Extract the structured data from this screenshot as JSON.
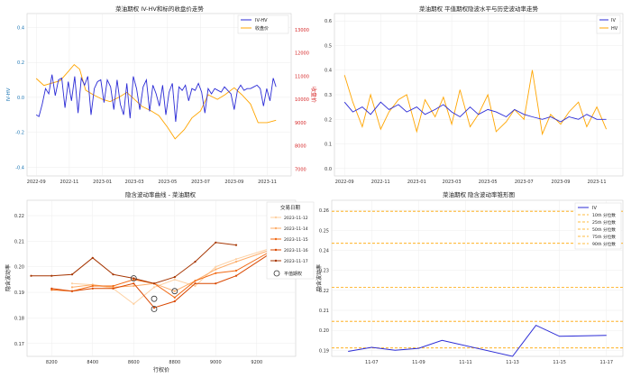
{
  "chart_data": [
    {
      "type": "line",
      "title": "菜油期权 IV-HV和标的收盘价走势",
      "xlabel": "",
      "ylabel": "IV-HV",
      "ylabel_right": "收盘价",
      "ylim": [
        -0.45,
        0.48
      ],
      "ylim_right": [
        6700,
        13700
      ],
      "xlim": [
        "2022-08-15",
        "2023-12-15"
      ],
      "yticks": [
        "-0.4",
        "-0.2",
        "0.0",
        "0.2",
        "0.4"
      ],
      "yticks_right": [
        "7000",
        "8000",
        "9000",
        "10000",
        "11000",
        "12000",
        "13000"
      ],
      "xticks": [
        "2022-09",
        "2022-11",
        "2023-01",
        "2023-03",
        "2023-05",
        "2023-07",
        "2023-09",
        "2023-11"
      ],
      "legend_position": "top-right",
      "colors": {
        "iv_hv": "#2b2bd6",
        "close": "#ffa500",
        "left_axis": "#1f77b4",
        "right_axis": "#d62728"
      },
      "series": [
        {
          "name": "IV-HV",
          "axis": "left",
          "x": [
            "2022-09-01",
            "2022-09-06",
            "2022-09-12",
            "2022-09-18",
            "2022-09-24",
            "2022-09-30",
            "2022-10-06",
            "2022-10-12",
            "2022-10-18",
            "2022-10-24",
            "2022-10-30",
            "2022-11-05",
            "2022-11-11",
            "2022-11-17",
            "2022-11-23",
            "2022-11-29",
            "2022-12-05",
            "2022-12-11",
            "2022-12-17",
            "2022-12-23",
            "2022-12-29",
            "2023-01-04",
            "2023-01-10",
            "2023-01-16",
            "2023-01-22",
            "2023-01-28",
            "2023-02-03",
            "2023-02-09",
            "2023-02-15",
            "2023-02-21",
            "2023-02-27",
            "2023-03-05",
            "2023-03-11",
            "2023-03-17",
            "2023-03-23",
            "2023-03-29",
            "2023-04-04",
            "2023-04-10",
            "2023-04-16",
            "2023-04-22",
            "2023-04-28",
            "2023-05-04",
            "2023-05-10",
            "2023-05-16",
            "2023-05-22",
            "2023-05-28",
            "2023-06-03",
            "2023-06-09",
            "2023-06-15",
            "2023-06-21",
            "2023-06-27",
            "2023-07-03",
            "2023-07-09",
            "2023-07-15",
            "2023-07-21",
            "2023-07-27",
            "2023-08-02",
            "2023-08-08",
            "2023-08-14",
            "2023-08-20",
            "2023-08-26",
            "2023-09-01",
            "2023-09-07",
            "2023-09-13",
            "2023-09-19",
            "2023-09-25",
            "2023-10-01",
            "2023-10-07",
            "2023-10-13",
            "2023-10-19",
            "2023-10-25",
            "2023-10-31",
            "2023-11-06",
            "2023-11-12",
            "2023-11-17"
          ],
          "values": [
            -0.1,
            -0.11,
            -0.04,
            0.05,
            0.02,
            0.13,
            0.01,
            0.1,
            0.11,
            -0.06,
            0.09,
            -0.02,
            0.12,
            -0.09,
            0.11,
            0.07,
            0.12,
            -0.1,
            0.05,
            0.09,
            0.1,
            -0.03,
            0.1,
            0.06,
            -0.07,
            0.1,
            -0.04,
            -0.1,
            0.08,
            -0.12,
            0.12,
            0.05,
            -0.07,
            0.06,
            0.1,
            -0.08,
            0.07,
            0.02,
            -0.05,
            0.07,
            -0.1,
            0.03,
            0.08,
            -0.14,
            0.06,
            0.04,
            0.07,
            -0.02,
            0.05,
            0.04,
            0.08,
            0.03,
            -0.09,
            0.05,
            0.02,
            0.05,
            0.04,
            0.03,
            0.06,
            0.04,
            0.02,
            -0.07,
            0.04,
            0.07,
            0.04,
            0.05,
            0.05,
            0.06,
            0.07,
            0.05,
            -0.05,
            0.05,
            -0.02,
            0.11,
            0.06
          ]
        },
        {
          "name": "收盘价",
          "axis": "right",
          "x": [
            "2022-09-01",
            "2022-09-15",
            "2022-09-30",
            "2022-10-15",
            "2022-10-30",
            "2022-11-10",
            "2022-11-20",
            "2022-12-01",
            "2022-12-15",
            "2023-01-01",
            "2023-01-15",
            "2023-02-01",
            "2023-02-15",
            "2023-03-01",
            "2023-03-15",
            "2023-04-01",
            "2023-04-15",
            "2023-05-01",
            "2023-05-15",
            "2023-06-01",
            "2023-06-15",
            "2023-07-01",
            "2023-07-15",
            "2023-08-01",
            "2023-08-15",
            "2023-09-01",
            "2023-09-15",
            "2023-10-01",
            "2023-10-15",
            "2023-11-01",
            "2023-11-17"
          ],
          "values": [
            10900,
            10600,
            10700,
            10800,
            11200,
            11500,
            11300,
            10400,
            10200,
            10000,
            9900,
            10100,
            10300,
            10000,
            9700,
            9500,
            9300,
            8800,
            8300,
            8700,
            9200,
            9500,
            10200,
            10000,
            10200,
            10500,
            10200,
            9800,
            9000,
            9000,
            9100
          ]
        }
      ]
    },
    {
      "type": "line",
      "title": "菜油期权 平值期权隐波水平与历史波动率走势",
      "xlabel": "",
      "ylabel": "",
      "ylim": [
        -0.03,
        0.63
      ],
      "xlim": [
        "2022-08-15",
        "2023-12-15"
      ],
      "yticks": [
        "0.0",
        "0.1",
        "0.2",
        "0.3",
        "0.4",
        "0.5",
        "0.6"
      ],
      "xticks": [
        "2022-09",
        "2022-11",
        "2023-01",
        "2023-03",
        "2023-05",
        "2023-07",
        "2023-09",
        "2023-11"
      ],
      "legend_position": "top-right",
      "colors": {
        "iv": "#2b2bd6",
        "hv": "#ffa500"
      },
      "series": [
        {
          "name": "IV",
          "x": [
            "2022-09-01",
            "2022-09-15",
            "2022-10-01",
            "2022-10-15",
            "2022-11-01",
            "2022-11-15",
            "2022-12-01",
            "2022-12-15",
            "2023-01-01",
            "2023-01-15",
            "2023-02-01",
            "2023-02-15",
            "2023-03-01",
            "2023-03-15",
            "2023-04-01",
            "2023-04-15",
            "2023-05-01",
            "2023-05-15",
            "2023-06-01",
            "2023-06-15",
            "2023-07-01",
            "2023-07-15",
            "2023-08-01",
            "2023-08-15",
            "2023-09-01",
            "2023-09-15",
            "2023-10-01",
            "2023-10-15",
            "2023-11-01",
            "2023-11-17"
          ],
          "values": [
            0.27,
            0.23,
            0.25,
            0.22,
            0.27,
            0.24,
            0.26,
            0.23,
            0.25,
            0.22,
            0.24,
            0.26,
            0.23,
            0.21,
            0.25,
            0.22,
            0.24,
            0.23,
            0.21,
            0.24,
            0.22,
            0.21,
            0.2,
            0.21,
            0.19,
            0.21,
            0.2,
            0.22,
            0.2,
            0.2
          ]
        },
        {
          "name": "HV",
          "x": [
            "2022-09-01",
            "2022-09-15",
            "2022-10-01",
            "2022-10-15",
            "2022-11-01",
            "2022-11-15",
            "2022-12-01",
            "2022-12-15",
            "2023-01-01",
            "2023-01-15",
            "2023-02-01",
            "2023-02-15",
            "2023-03-01",
            "2023-03-15",
            "2023-04-01",
            "2023-04-15",
            "2023-05-01",
            "2023-05-15",
            "2023-06-01",
            "2023-06-15",
            "2023-07-01",
            "2023-07-15",
            "2023-08-01",
            "2023-08-15",
            "2023-09-01",
            "2023-09-15",
            "2023-10-01",
            "2023-10-15",
            "2023-11-01",
            "2023-11-17"
          ],
          "values": [
            0.38,
            0.27,
            0.17,
            0.3,
            0.16,
            0.23,
            0.28,
            0.3,
            0.15,
            0.28,
            0.21,
            0.29,
            0.18,
            0.32,
            0.17,
            0.22,
            0.3,
            0.15,
            0.19,
            0.24,
            0.2,
            0.4,
            0.14,
            0.22,
            0.18,
            0.23,
            0.27,
            0.17,
            0.25,
            0.16
          ]
        }
      ]
    },
    {
      "type": "line",
      "title": "隐含波动率曲线 - 菜油期权",
      "xlabel": "行权价",
      "ylabel": "隐含波动率",
      "ylim": [
        0.165,
        0.226
      ],
      "xlim": [
        8080,
        9390
      ],
      "xticks": [
        "8200",
        "8400",
        "8600",
        "8800",
        "9000",
        "9200"
      ],
      "yticks": [
        "0.17",
        "0.18",
        "0.19",
        "0.20",
        "0.21",
        "0.22"
      ],
      "legend_title": "交易日期",
      "legend_position": "upper-right",
      "atm_label": "平值期权",
      "series": [
        {
          "name": "2023-11-12",
          "color": "#fdd0a2",
          "x": [
            8300,
            8400,
            8500,
            8600,
            8700,
            8800,
            8900,
            9000,
            9100,
            9300
          ],
          "values": [
            0.1935,
            0.193,
            0.1915,
            0.1855,
            0.192,
            0.195,
            0.1925,
            0.2,
            0.203,
            0.208
          ]
        },
        {
          "name": "2023-11-14",
          "color": "#fdae6b",
          "x": [
            8300,
            8400,
            8500,
            8600,
            8700,
            8800,
            8900,
            9000,
            9100,
            9300
          ],
          "values": [
            0.192,
            0.193,
            0.192,
            0.1925,
            0.1935,
            0.1905,
            0.1945,
            0.199,
            0.202,
            0.2075
          ]
        },
        {
          "name": "2023-11-15",
          "color": "#f16913",
          "x": [
            8200,
            8300,
            8400,
            8500,
            8600,
            8700,
            8800,
            8900,
            9000,
            9100,
            9300
          ],
          "values": [
            0.191,
            0.1905,
            0.1925,
            0.1925,
            0.195,
            0.1935,
            0.188,
            0.1945,
            0.1975,
            0.1985,
            0.2075
          ]
        },
        {
          "name": "2023-11-16",
          "color": "#d94801",
          "x": [
            8200,
            8300,
            8400,
            8500,
            8600,
            8700,
            8800,
            8900,
            9000,
            9100,
            9300
          ],
          "values": [
            0.1915,
            0.1905,
            0.1915,
            0.1915,
            0.1935,
            0.184,
            0.1865,
            0.1935,
            0.1935,
            0.1965,
            0.207
          ]
        },
        {
          "name": "2023-11-17",
          "color": "#a63603",
          "x": [
            8100,
            8200,
            8300,
            8400,
            8500,
            8600,
            8700,
            8800,
            8900,
            9000,
            9100
          ],
          "values": [
            0.1965,
            0.1965,
            0.197,
            0.2035,
            0.197,
            0.1955,
            0.1935,
            0.196,
            0.202,
            0.2095,
            0.2085
          ]
        }
      ],
      "atm_points": [
        {
          "x": 8600,
          "value": 0.1955
        },
        {
          "x": 8700,
          "value": 0.1875
        },
        {
          "x": 8700,
          "value": 0.1835
        },
        {
          "x": 8800,
          "value": 0.1905
        }
      ]
    },
    {
      "type": "line",
      "title": "菜油期权 隐含波动率锥形图",
      "xlabel": "",
      "ylabel": "隐含波动率",
      "ylim": [
        0.187,
        0.265
      ],
      "xlim": [
        "2023-11-06",
        "2023-11-17"
      ],
      "xticks": [
        "11-07",
        "11-09",
        "11-11",
        "11-13",
        "11-15",
        "11-17"
      ],
      "yticks": [
        "0.19",
        "0.20",
        "0.21",
        "0.22",
        "0.23",
        "0.24",
        "0.25",
        "0.26"
      ],
      "legend_position": "top-right",
      "colors": {
        "iv": "#2b2bd6",
        "quantile": "#ffa500"
      },
      "series": [
        {
          "name": "IV",
          "x": [
            "2023-11-06",
            "2023-11-07",
            "2023-11-08",
            "2023-11-09",
            "2023-11-10",
            "2023-11-13",
            "2023-11-14",
            "2023-11-15",
            "2023-11-17"
          ],
          "values": [
            0.1895,
            0.1915,
            0.19,
            0.191,
            0.195,
            0.187,
            0.2025,
            0.197,
            0.1975
          ]
        }
      ],
      "quantiles": [
        {
          "name": "10th 分位数",
          "value": 0.1912
        },
        {
          "name": "25th 分位数",
          "value": 0.2045
        },
        {
          "name": "50th 分位数",
          "value": 0.2215
        },
        {
          "name": "75th 分位数",
          "value": 0.2435
        },
        {
          "name": "90th 分位数",
          "value": 0.2595
        }
      ]
    }
  ]
}
